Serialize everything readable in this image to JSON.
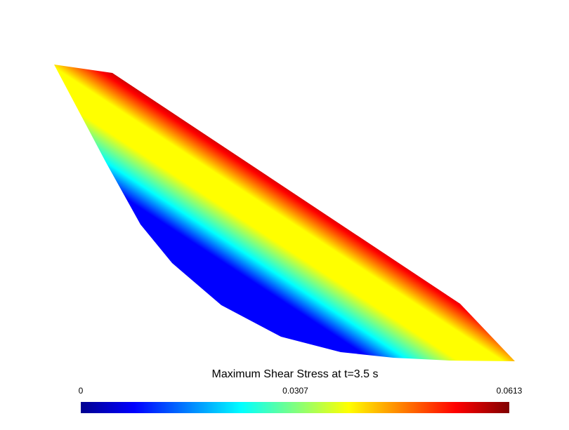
{
  "chart_data": {
    "type": "contour",
    "title": "Maximum Shear Stress at t=3.5 s",
    "colormap": "jet",
    "clim": [
      0,
      0.0613
    ],
    "cticks": [
      0,
      0.0307,
      0.0613
    ]
  }
}
